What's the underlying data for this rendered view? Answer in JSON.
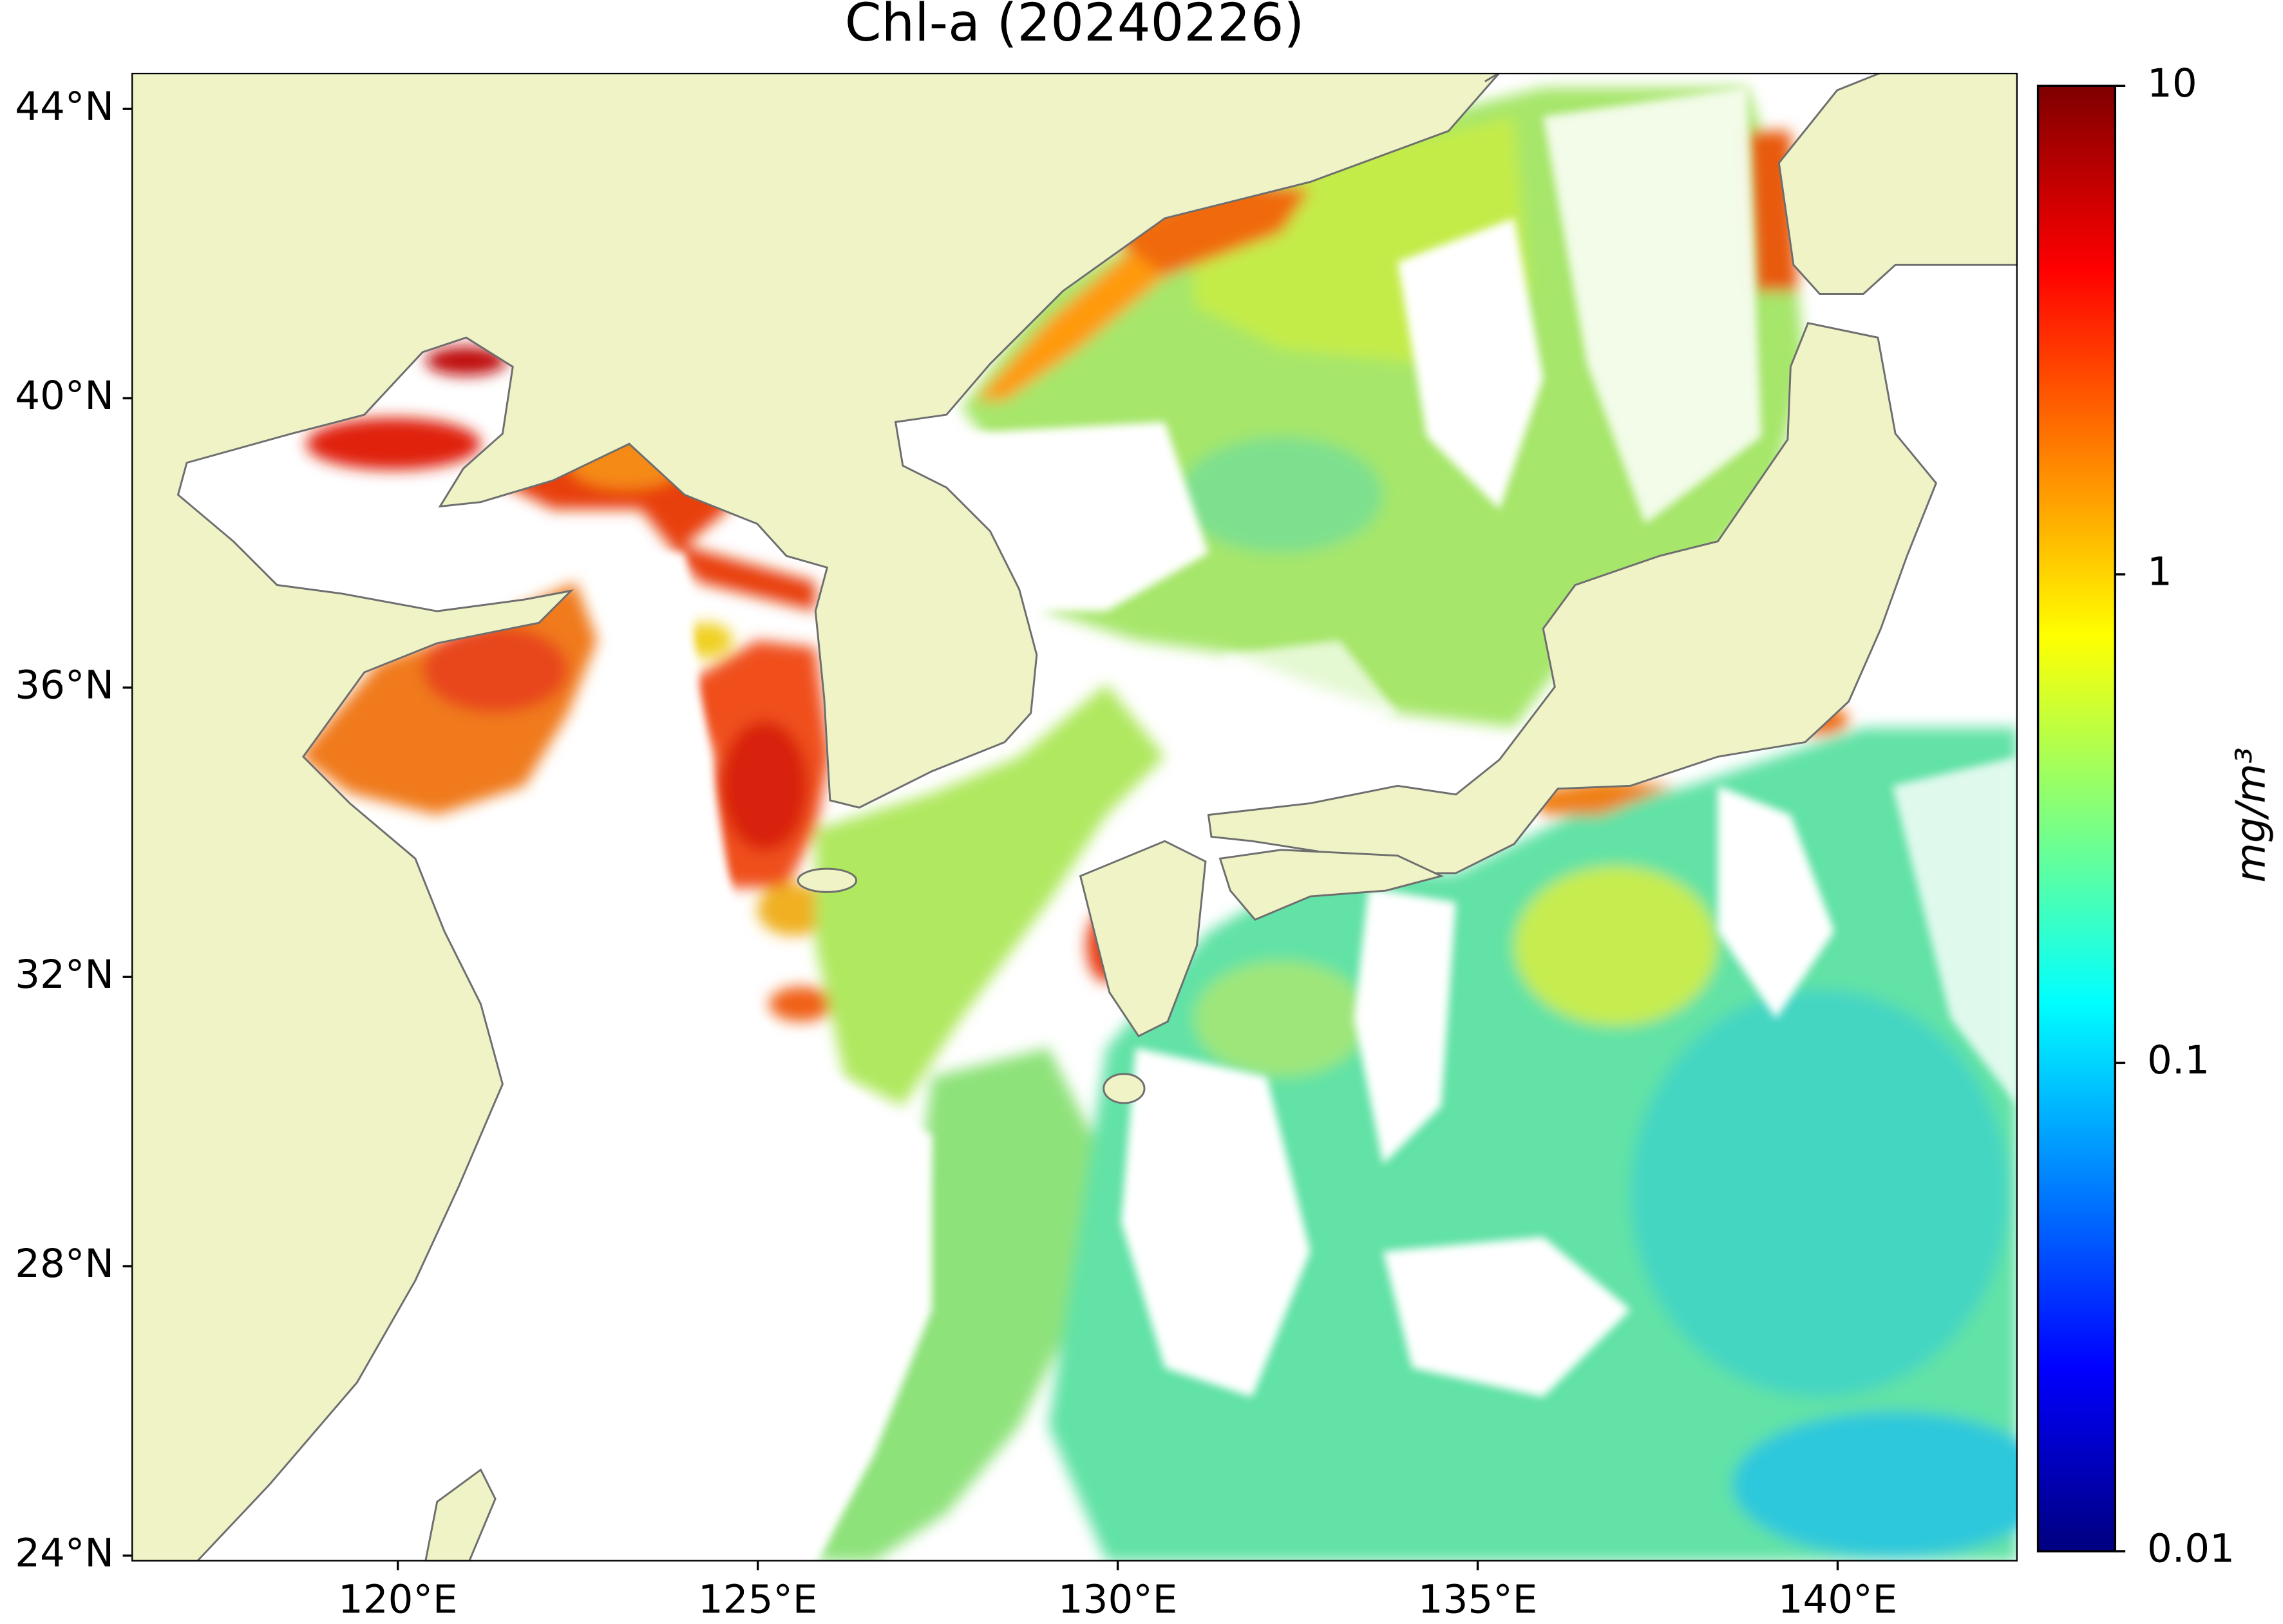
{
  "title": "Chl-a (20240226)",
  "map": {
    "xlim": [
      116.3,
      142.5
    ],
    "ylim": [
      23.92,
      44.5
    ],
    "land_color": "#eff3c6",
    "lat_ticks": [
      {
        "value": 44,
        "label": "44°N"
      },
      {
        "value": 40,
        "label": "40°N"
      },
      {
        "value": 36,
        "label": "36°N"
      },
      {
        "value": 32,
        "label": "32°N"
      },
      {
        "value": 28,
        "label": "28°N"
      },
      {
        "value": 24,
        "label": "24°N"
      }
    ],
    "lon_ticks": [
      {
        "value": 120,
        "label": "120°E"
      },
      {
        "value": 125,
        "label": "125°E"
      },
      {
        "value": 130,
        "label": "130°E"
      },
      {
        "value": 135,
        "label": "135°E"
      },
      {
        "value": 140,
        "label": "140°E"
      }
    ]
  },
  "colorbar": {
    "label": "mg/m³",
    "scale": "log",
    "lim": [
      0.01,
      10
    ],
    "ticks": [
      0.01,
      0.1,
      1,
      10
    ],
    "colors": [
      "#00007f",
      "#0000ff",
      "#007fff",
      "#00ffff",
      "#7fff7f",
      "#ffff00",
      "#ff7f00",
      "#ff0000",
      "#7f0000"
    ]
  }
}
